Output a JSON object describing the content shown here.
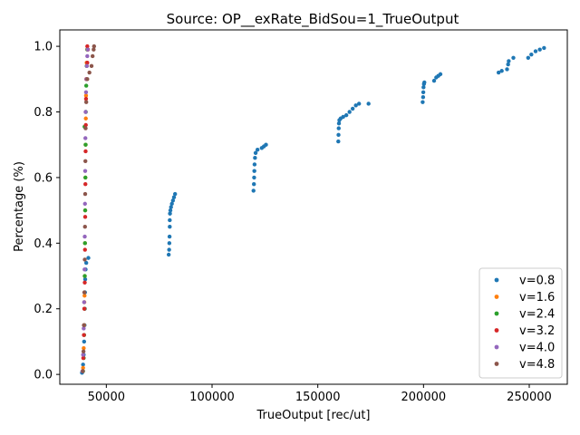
{
  "chart_data": {
    "type": "scatter",
    "title": "Source: OP__exRate_BidSou=1_TrueOutput",
    "xlabel": "TrueOutput [rec/ut]",
    "ylabel": "Percentage (%)",
    "xlim": [
      28000,
      268000
    ],
    "ylim": [
      -0.03,
      1.05
    ],
    "x_ticks": [
      50000,
      100000,
      150000,
      200000,
      250000
    ],
    "x_tick_labels": [
      "50000",
      "100000",
      "150000",
      "200000",
      "250000"
    ],
    "y_ticks": [
      0.0,
      0.2,
      0.4,
      0.6,
      0.8,
      1.0
    ],
    "y_tick_labels": [
      "0.0",
      "0.2",
      "0.4",
      "0.6",
      "0.8",
      "1.0"
    ],
    "grid": false,
    "legend_position": "lower-right",
    "series": [
      {
        "name": "v=0.8",
        "color": "#1f77b4",
        "points": [
          [
            38500,
            0.005
          ],
          [
            39000,
            0.03
          ],
          [
            39300,
            0.06
          ],
          [
            39500,
            0.1
          ],
          [
            39700,
            0.15
          ],
          [
            39800,
            0.2
          ],
          [
            39900,
            0.25
          ],
          [
            40000,
            0.29
          ],
          [
            40200,
            0.32
          ],
          [
            40500,
            0.34
          ],
          [
            41500,
            0.355
          ],
          [
            79500,
            0.365
          ],
          [
            79700,
            0.38
          ],
          [
            79800,
            0.4
          ],
          [
            79900,
            0.42
          ],
          [
            80000,
            0.45
          ],
          [
            80000,
            0.47
          ],
          [
            80100,
            0.49
          ],
          [
            80300,
            0.5
          ],
          [
            80600,
            0.51
          ],
          [
            81000,
            0.52
          ],
          [
            81500,
            0.53
          ],
          [
            82000,
            0.54
          ],
          [
            82500,
            0.55
          ],
          [
            119600,
            0.56
          ],
          [
            119800,
            0.58
          ],
          [
            119900,
            0.6
          ],
          [
            120000,
            0.62
          ],
          [
            120100,
            0.64
          ],
          [
            120300,
            0.66
          ],
          [
            120600,
            0.675
          ],
          [
            121500,
            0.685
          ],
          [
            123500,
            0.69
          ],
          [
            124500,
            0.695
          ],
          [
            125500,
            0.7
          ],
          [
            159700,
            0.71
          ],
          [
            159800,
            0.73
          ],
          [
            159900,
            0.75
          ],
          [
            160000,
            0.765
          ],
          [
            160200,
            0.775
          ],
          [
            160800,
            0.78
          ],
          [
            162000,
            0.785
          ],
          [
            163500,
            0.79
          ],
          [
            165000,
            0.8
          ],
          [
            166500,
            0.81
          ],
          [
            168000,
            0.82
          ],
          [
            169500,
            0.825
          ],
          [
            174000,
            0.825
          ],
          [
            199600,
            0.83
          ],
          [
            199800,
            0.845
          ],
          [
            199900,
            0.86
          ],
          [
            200000,
            0.875
          ],
          [
            200200,
            0.885
          ],
          [
            200400,
            0.89
          ],
          [
            205000,
            0.895
          ],
          [
            206000,
            0.905
          ],
          [
            207000,
            0.91
          ],
          [
            208000,
            0.915
          ],
          [
            235500,
            0.92
          ],
          [
            237000,
            0.925
          ],
          [
            239500,
            0.93
          ],
          [
            240000,
            0.945
          ],
          [
            240300,
            0.955
          ],
          [
            242500,
            0.965
          ],
          [
            249500,
            0.965
          ],
          [
            251000,
            0.975
          ],
          [
            253000,
            0.985
          ],
          [
            255000,
            0.99
          ],
          [
            257000,
            0.995
          ]
        ]
      },
      {
        "name": "v=1.6",
        "color": "#ff7f0e",
        "points": [
          [
            39000,
            0.02
          ],
          [
            39300,
            0.08
          ],
          [
            39500,
            0.15
          ],
          [
            39600,
            0.22
          ],
          [
            39700,
            0.24
          ],
          [
            39800,
            0.3
          ],
          [
            39900,
            0.4
          ],
          [
            40000,
            0.5
          ],
          [
            40100,
            0.6
          ],
          [
            40200,
            0.7
          ],
          [
            40300,
            0.78
          ],
          [
            40400,
            0.85
          ],
          [
            40500,
            0.9
          ],
          [
            40700,
            0.95
          ],
          [
            41000,
            0.99
          ]
        ]
      },
      {
        "name": "v=2.4",
        "color": "#2ca02c",
        "points": [
          [
            39000,
            0.01
          ],
          [
            39300,
            0.05
          ],
          [
            39500,
            0.12
          ],
          [
            39700,
            0.2
          ],
          [
            39800,
            0.3
          ],
          [
            39900,
            0.4
          ],
          [
            40000,
            0.5
          ],
          [
            40100,
            0.6
          ],
          [
            40200,
            0.7
          ],
          [
            39700,
            0.755
          ],
          [
            40300,
            0.8
          ],
          [
            40500,
            0.88
          ],
          [
            40700,
            0.94
          ],
          [
            41000,
            0.99
          ]
        ]
      },
      {
        "name": "v=3.2",
        "color": "#d62728",
        "points": [
          [
            38800,
            0.01
          ],
          [
            39100,
            0.05
          ],
          [
            39400,
            0.12
          ],
          [
            39600,
            0.2
          ],
          [
            39800,
            0.28
          ],
          [
            39900,
            0.38
          ],
          [
            40000,
            0.48
          ],
          [
            40100,
            0.58
          ],
          [
            40200,
            0.68
          ],
          [
            40300,
            0.76
          ],
          [
            40400,
            0.84
          ],
          [
            40600,
            0.9
          ],
          [
            41000,
            0.95
          ],
          [
            41300,
            0.99
          ],
          [
            41000,
            1.0
          ]
        ]
      },
      {
        "name": "v=4.0",
        "color": "#9467bd",
        "points": [
          [
            38700,
            0.01
          ],
          [
            39000,
            0.06
          ],
          [
            39300,
            0.14
          ],
          [
            39500,
            0.22
          ],
          [
            39700,
            0.32
          ],
          [
            39800,
            0.42
          ],
          [
            39900,
            0.52
          ],
          [
            40000,
            0.62
          ],
          [
            40100,
            0.72
          ],
          [
            40200,
            0.8
          ],
          [
            40400,
            0.86
          ],
          [
            40600,
            0.9
          ],
          [
            40800,
            0.94
          ],
          [
            41000,
            0.97
          ],
          [
            41200,
            0.99
          ]
        ]
      },
      {
        "name": "v=4.8",
        "color": "#8c564b",
        "points": [
          [
            38900,
            0.01
          ],
          [
            39200,
            0.07
          ],
          [
            39400,
            0.15
          ],
          [
            39600,
            0.25
          ],
          [
            39800,
            0.35
          ],
          [
            39900,
            0.45
          ],
          [
            40000,
            0.55
          ],
          [
            40100,
            0.65
          ],
          [
            40200,
            0.75
          ],
          [
            40500,
            0.83
          ],
          [
            41000,
            0.9
          ],
          [
            42000,
            0.92
          ],
          [
            43000,
            0.94
          ],
          [
            43500,
            0.97
          ],
          [
            44000,
            0.99
          ],
          [
            44200,
            1.0
          ]
        ]
      }
    ]
  }
}
